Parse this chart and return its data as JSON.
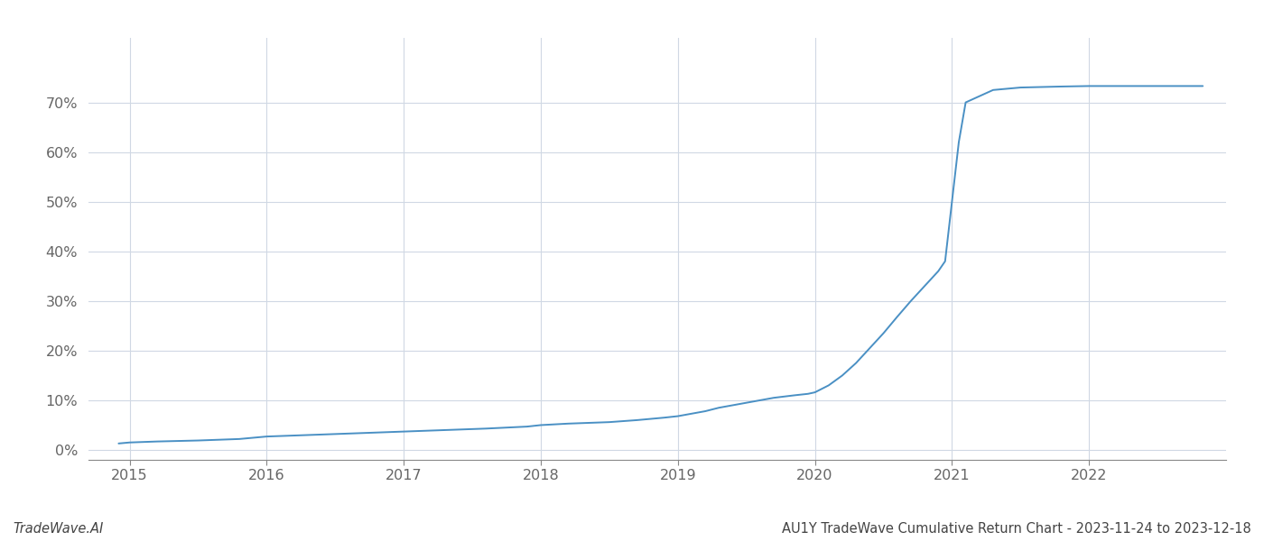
{
  "footer_left": "TradeWave.AI",
  "footer_right": "AU1Y TradeWave Cumulative Return Chart - 2023-11-24 to 2023-12-18",
  "line_color": "#4a90c4",
  "background_color": "#ffffff",
  "grid_color": "#d0d8e4",
  "x_data": [
    2014.92,
    2015.0,
    2015.2,
    2015.5,
    2015.8,
    2016.0,
    2016.3,
    2016.6,
    2016.9,
    2017.0,
    2017.3,
    2017.6,
    2017.9,
    2018.0,
    2018.2,
    2018.5,
    2018.7,
    2018.9,
    2019.0,
    2019.1,
    2019.2,
    2019.3,
    2019.5,
    2019.7,
    2019.85,
    2019.95,
    2020.0,
    2020.1,
    2020.2,
    2020.3,
    2020.4,
    2020.5,
    2020.6,
    2020.7,
    2020.8,
    2020.85,
    2020.9,
    2020.95,
    2021.0,
    2021.05,
    2021.1,
    2021.3,
    2021.5,
    2021.8,
    2022.0,
    2022.3,
    2022.6,
    2022.83
  ],
  "y_data": [
    0.013,
    0.015,
    0.017,
    0.019,
    0.022,
    0.027,
    0.03,
    0.033,
    0.036,
    0.037,
    0.04,
    0.043,
    0.047,
    0.05,
    0.053,
    0.056,
    0.06,
    0.065,
    0.068,
    0.073,
    0.078,
    0.085,
    0.095,
    0.105,
    0.11,
    0.113,
    0.116,
    0.13,
    0.15,
    0.175,
    0.205,
    0.235,
    0.268,
    0.3,
    0.33,
    0.345,
    0.36,
    0.38,
    0.5,
    0.62,
    0.7,
    0.725,
    0.73,
    0.732,
    0.733,
    0.733,
    0.733,
    0.733
  ],
  "xlim": [
    2014.7,
    2023.0
  ],
  "ylim": [
    -0.02,
    0.83
  ],
  "yticks": [
    0.0,
    0.1,
    0.2,
    0.3,
    0.4,
    0.5,
    0.6,
    0.7
  ],
  "ytick_labels": [
    "0%",
    "10%",
    "20%",
    "30%",
    "40%",
    "50%",
    "60%",
    "70%"
  ],
  "xtick_years": [
    2015,
    2016,
    2017,
    2018,
    2019,
    2020,
    2021,
    2022
  ],
  "line_width": 1.4,
  "axis_color": "#888888",
  "tick_color": "#666666",
  "footer_fontsize": 10.5,
  "tick_fontsize": 11.5
}
